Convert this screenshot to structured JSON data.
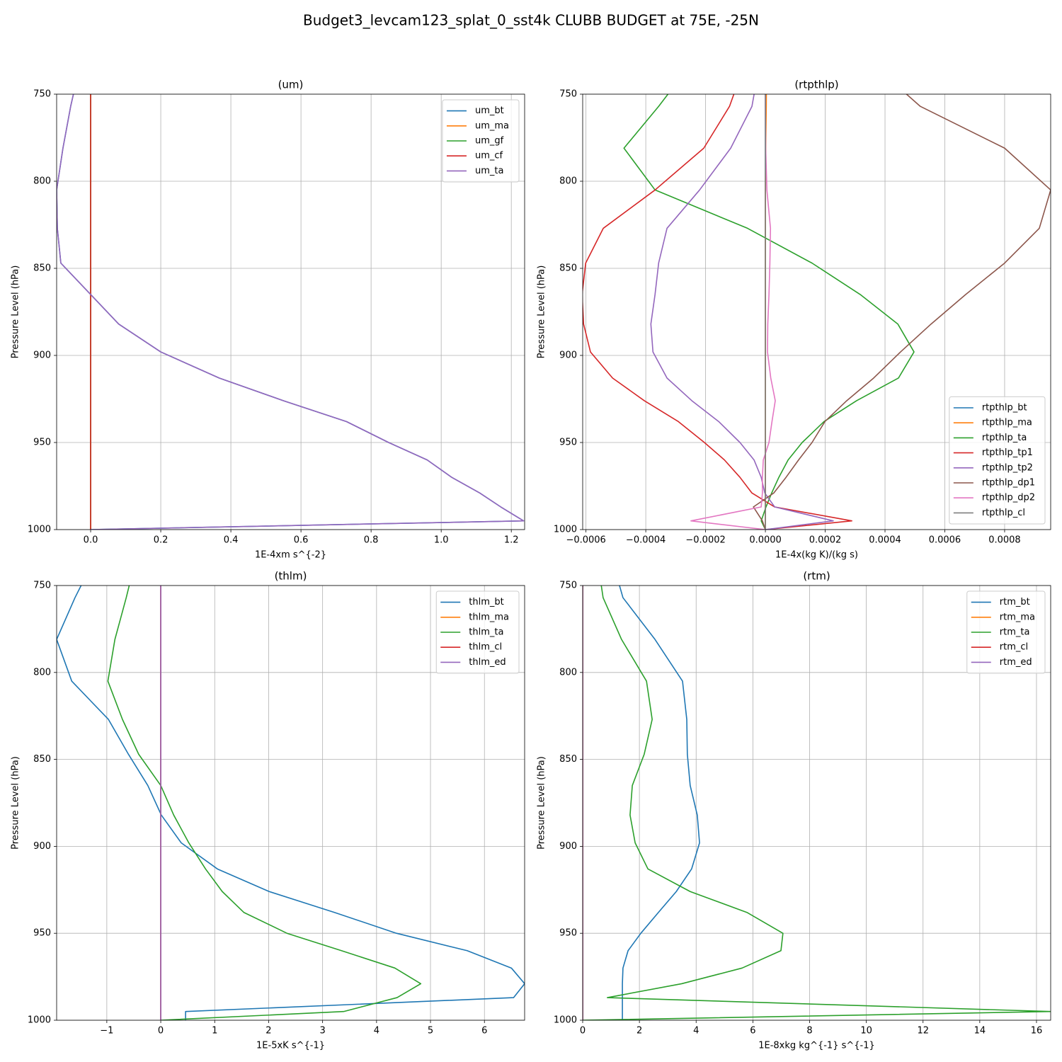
{
  "title": "Budget3_levcam123_splat_0_sst4k CLUBB BUDGET at 75E, -25N",
  "chart_data": [
    {
      "type": "line",
      "title": "(um)",
      "xlabel": "1E-4xm s^{-2}",
      "ylabel": "Pressure Level (hPa)",
      "xlim": [
        -0.097,
        1.238
      ],
      "xticks": [
        {
          "value": 0,
          "label": "0.0"
        },
        {
          "value": 0.2,
          "label": "0.2"
        },
        {
          "value": 0.4,
          "label": "0.4"
        },
        {
          "value": 0.6,
          "label": "0.6"
        },
        {
          "value": 0.8,
          "label": "0.8"
        },
        {
          "value": 1,
          "label": "1.0"
        },
        {
          "value": 1.2,
          "label": "1.2"
        }
      ],
      "ylim": [
        1000,
        750
      ],
      "yticks": [
        750,
        800,
        850,
        900,
        950,
        1000
      ],
      "grid": true,
      "legend": "upper right",
      "levels": [
        733,
        757,
        781,
        805,
        827,
        847,
        865,
        882,
        898,
        913,
        926,
        938,
        950,
        960,
        970,
        979,
        987,
        995,
        1000
      ],
      "series": [
        {
          "name": "um_bt",
          "color": "#1f77b4",
          "values": [
            -0.03,
            -0.057,
            -0.079,
            -0.097,
            -0.095,
            -0.085,
            0.0,
            0.08,
            0.2,
            0.367,
            0.55,
            0.73,
            0.85,
            0.96,
            1.03,
            1.11,
            1.17,
            1.235,
            0.0
          ]
        },
        {
          "name": "um_ma",
          "color": "#ff7f0e",
          "values": [
            0,
            0,
            0,
            0,
            0,
            0,
            0,
            0,
            0,
            0,
            0,
            0,
            0,
            0,
            0,
            0,
            0,
            0,
            0
          ]
        },
        {
          "name": "um_gf",
          "color": "#2ca02c",
          "values": [
            0,
            0,
            0,
            0,
            0,
            0,
            0,
            0,
            0,
            0,
            0,
            0,
            0,
            0,
            0,
            0,
            0,
            0,
            0
          ]
        },
        {
          "name": "um_cf",
          "color": "#d62728",
          "values": [
            0,
            0,
            0,
            0,
            0,
            0,
            0,
            0,
            0,
            0,
            0,
            0,
            0,
            0,
            0,
            0,
            0,
            0,
            0
          ]
        },
        {
          "name": "um_ta",
          "color": "#9467bd",
          "values": [
            -0.03,
            -0.057,
            -0.079,
            -0.097,
            -0.095,
            -0.085,
            0.0,
            0.08,
            0.2,
            0.367,
            0.55,
            0.73,
            0.85,
            0.96,
            1.03,
            1.11,
            1.17,
            1.235,
            0.0
          ]
        }
      ]
    },
    {
      "type": "line",
      "title": "(rtpthlp)",
      "xlabel": "1E-4x(kg K)/(kg s)",
      "ylabel": "Pressure Level (hPa)",
      "xlim": [
        -0.000611,
        0.000954
      ],
      "xticks": [
        {
          "value": -0.0006,
          "label": "−0.0006"
        },
        {
          "value": -0.0004,
          "label": "−0.0004"
        },
        {
          "value": -0.0002,
          "label": "−0.0002"
        },
        {
          "value": 0,
          "label": "0.0000"
        },
        {
          "value": 0.0002,
          "label": "0.0002"
        },
        {
          "value": 0.0004,
          "label": "0.0004"
        },
        {
          "value": 0.0006,
          "label": "0.0006"
        },
        {
          "value": 0.0008,
          "label": "0.0008"
        }
      ],
      "ylim": [
        1000,
        750
      ],
      "yticks": [
        750,
        800,
        850,
        900,
        950,
        1000
      ],
      "grid": true,
      "legend": "lower right",
      "levels": [
        733,
        757,
        781,
        805,
        827,
        847,
        865,
        882,
        898,
        913,
        926,
        938,
        950,
        960,
        970,
        979,
        987,
        995,
        1000
      ],
      "series": [
        {
          "name": "rtpthlp_bt",
          "color": "#1f77b4",
          "values": [
            0,
            0,
            0,
            0,
            0,
            0,
            0,
            0,
            0,
            0,
            0,
            0,
            0,
            0,
            0,
            0,
            0,
            0,
            0
          ]
        },
        {
          "name": "rtpthlp_ma",
          "color": "#ff7f0e",
          "values": [
            4e-06,
            3e-06,
            1e-06,
            0,
            0,
            0,
            0,
            0,
            0,
            0,
            0,
            0,
            0,
            0,
            0,
            0,
            0,
            0,
            0
          ]
        },
        {
          "name": "rtpthlp_ta",
          "color": "#2ca02c",
          "values": [
            -0.00025,
            -0.000357,
            -0.000473,
            -0.000369,
            -6e-05,
            0.000156,
            0.000317,
            0.000443,
            0.000497,
            0.000445,
            0.000305,
            0.000196,
            0.000123,
            7.6e-05,
            4.5e-05,
            2.1e-05,
            2e-06,
            -1.4e-05,
            0
          ]
        },
        {
          "name": "rtpthlp_tp1",
          "color": "#d62728",
          "values": [
            -7e-05,
            -0.00012,
            -0.000206,
            -0.000369,
            -0.000542,
            -0.000601,
            -0.000613,
            -0.000608,
            -0.000585,
            -0.000511,
            -0.000405,
            -0.000291,
            -0.000204,
            -0.000137,
            -8.5e-05,
            -4.5e-05,
            3.1e-05,
            0.000289,
            0
          ]
        },
        {
          "name": "rtpthlp_tp2",
          "color": "#9467bd",
          "values": [
            -2e-05,
            -4.5e-05,
            -0.000116,
            -0.00022,
            -0.000329,
            -0.000357,
            -0.000369,
            -0.000383,
            -0.000376,
            -0.000329,
            -0.000246,
            -0.000156,
            -8.5e-05,
            -3.8e-05,
            -1.4e-05,
            -2e-06,
            3.1e-05,
            0.000227,
            0
          ]
        },
        {
          "name": "rtpthlp_dp1",
          "color": "#8c564b",
          "values": [
            0.00036,
            0.000518,
            0.0008,
            0.000954,
            0.000916,
            0.0008,
            0.00067,
            0.000554,
            0.000452,
            0.000362,
            0.000272,
            0.000199,
            0.000156,
            0.000111,
            6.9e-05,
            2.8e-05,
            -4e-05,
            -1e-05,
            0
          ]
        },
        {
          "name": "rtpthlp_dp2",
          "color": "#e377c2",
          "values": [
            0,
            0,
            1e-06,
            5e-06,
            1.7e-05,
            1.5e-05,
            1.2e-05,
            8e-06,
            7e-06,
            1.8e-05,
            3.3e-05,
            2.2e-05,
            1.2e-05,
            -7e-06,
            -1e-05,
            -1e-05,
            -1.4e-05,
            -0.000249,
            0
          ]
        },
        {
          "name": "rtpthlp_cl",
          "color": "#7f7f7f",
          "values": [
            0,
            0,
            0,
            0,
            0,
            0,
            0,
            0,
            0,
            0,
            0,
            0,
            0,
            0,
            0,
            0,
            0,
            0,
            0
          ]
        }
      ]
    },
    {
      "type": "line",
      "title": "(thlm)",
      "xlabel": "1E-5xK s^{-1}",
      "ylabel": "Pressure Level (hPa)",
      "xlim": [
        -1.93,
        6.745
      ],
      "xticks": [
        {
          "value": -1,
          "label": "−1"
        },
        0,
        1,
        2,
        3,
        4,
        5,
        6
      ],
      "ylim": [
        1000,
        750
      ],
      "yticks": [
        750,
        800,
        850,
        900,
        950,
        1000
      ],
      "grid": true,
      "legend": "upper right",
      "levels": [
        733,
        757,
        781,
        805,
        827,
        847,
        865,
        882,
        898,
        913,
        926,
        938,
        950,
        960,
        970,
        979,
        987,
        995,
        1000
      ],
      "series": [
        {
          "name": "thlm_bt",
          "color": "#1f77b4",
          "values": [
            -1.2,
            -1.59,
            -1.93,
            -1.65,
            -0.97,
            -0.6,
            -0.24,
            0.01,
            0.38,
            1.05,
            2.01,
            3.22,
            4.37,
            5.68,
            6.5,
            6.745,
            6.54,
            0.46,
            0.46
          ]
        },
        {
          "name": "thlm_ma",
          "color": "#ff7f0e",
          "values": [
            0,
            0,
            0,
            0,
            0,
            0,
            0,
            0,
            0,
            0,
            0,
            0,
            0,
            0,
            0,
            0,
            0,
            0,
            0
          ]
        },
        {
          "name": "thlm_ta",
          "color": "#2ca02c",
          "values": [
            -0.45,
            -0.64,
            -0.85,
            -0.98,
            -0.71,
            -0.41,
            0.0,
            0.24,
            0.52,
            0.83,
            1.14,
            1.54,
            2.34,
            3.35,
            4.34,
            4.82,
            4.38,
            3.39,
            0
          ]
        },
        {
          "name": "thlm_cl",
          "color": "#d62728",
          "values": [
            0,
            0,
            0,
            0,
            0,
            0,
            0,
            0,
            0,
            0,
            0,
            0,
            0,
            0,
            0,
            0,
            0,
            0,
            0
          ]
        },
        {
          "name": "thlm_ed",
          "color": "#9467bd",
          "values": [
            0,
            0,
            0,
            0,
            0,
            0,
            0,
            0,
            0,
            0,
            0,
            0,
            0,
            0,
            0,
            0,
            0,
            0,
            0
          ]
        }
      ]
    },
    {
      "type": "line",
      "title": "(rtm)",
      "xlabel": "1E-8xkg kg^{-1} s^{-1}",
      "ylabel": "Pressure Level (hPa)",
      "xlim": [
        0,
        16.5
      ],
      "xticks": [
        0,
        2,
        4,
        6,
        8,
        10,
        12,
        14,
        16
      ],
      "ylim": [
        1000,
        750
      ],
      "yticks": [
        750,
        800,
        850,
        900,
        950,
        1000
      ],
      "grid": true,
      "legend": "upper right",
      "levels": [
        733,
        757,
        781,
        805,
        827,
        847,
        865,
        882,
        898,
        913,
        926,
        938,
        950,
        960,
        970,
        979,
        987,
        995,
        1000
      ],
      "series": [
        {
          "name": "rtm_bt",
          "color": "#1f77b4",
          "values": [
            1.0,
            1.42,
            2.55,
            3.52,
            3.67,
            3.69,
            3.79,
            4.04,
            4.12,
            3.84,
            3.3,
            2.67,
            2.05,
            1.6,
            1.42,
            1.4,
            1.4,
            1.4,
            1.4
          ]
        },
        {
          "name": "rtm_ma",
          "color": "#ff7f0e",
          "values": [
            0,
            0,
            0,
            0,
            0,
            0,
            0,
            0,
            0,
            0,
            0,
            0,
            0,
            0,
            0,
            0,
            0,
            0,
            0
          ]
        },
        {
          "name": "rtm_ta",
          "color": "#2ca02c",
          "values": [
            0.5,
            0.72,
            1.37,
            2.25,
            2.45,
            2.17,
            1.75,
            1.67,
            1.85,
            2.3,
            3.79,
            5.79,
            7.06,
            6.99,
            5.62,
            3.49,
            0.87,
            16.5,
            0
          ]
        },
        {
          "name": "rtm_cl",
          "color": "#d62728",
          "values": [
            0,
            0,
            0,
            0,
            0,
            0,
            0,
            0,
            0,
            0,
            0,
            0,
            0,
            0,
            0,
            0,
            0,
            0,
            0
          ]
        },
        {
          "name": "rtm_ed",
          "color": "#9467bd",
          "values": [
            0,
            0,
            0,
            0,
            0,
            0,
            0,
            0,
            0,
            0,
            0,
            0,
            0,
            0,
            0,
            0,
            0,
            0,
            0
          ]
        }
      ]
    }
  ]
}
